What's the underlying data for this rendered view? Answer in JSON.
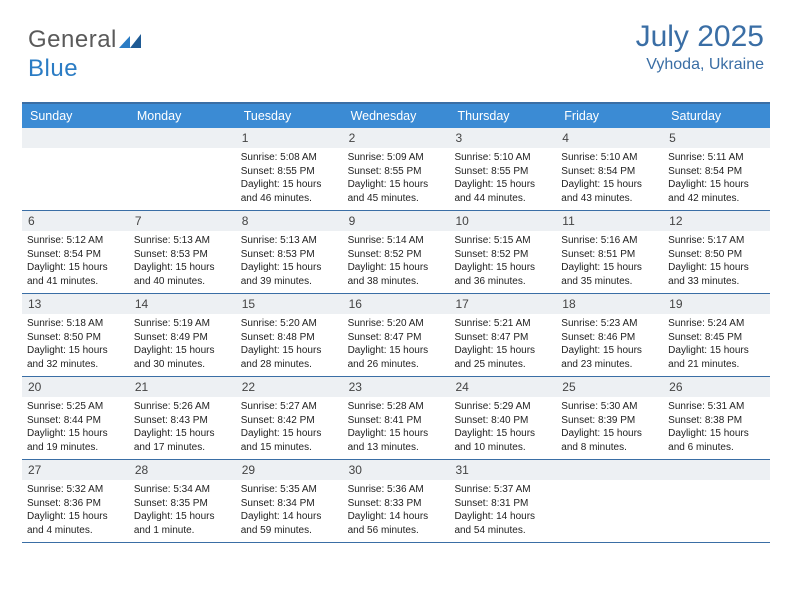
{
  "brand": {
    "name_part1": "General",
    "name_part2": "Blue"
  },
  "header": {
    "title": "July 2025",
    "location": "Vyhoda, Ukraine"
  },
  "colors": {
    "header_bar": "#3b8bd4",
    "accent": "#3a6ea5",
    "daynum_bg": "#edf0f3",
    "text": "#222222",
    "logo_gray": "#5a5a5a",
    "logo_blue": "#2b7cc4"
  },
  "weekdays": [
    "Sunday",
    "Monday",
    "Tuesday",
    "Wednesday",
    "Thursday",
    "Friday",
    "Saturday"
  ],
  "weeks": [
    [
      {
        "n": "",
        "sr": "",
        "ss": "",
        "dl": ""
      },
      {
        "n": "",
        "sr": "",
        "ss": "",
        "dl": ""
      },
      {
        "n": "1",
        "sr": "5:08 AM",
        "ss": "8:55 PM",
        "dl": "15 hours and 46 minutes."
      },
      {
        "n": "2",
        "sr": "5:09 AM",
        "ss": "8:55 PM",
        "dl": "15 hours and 45 minutes."
      },
      {
        "n": "3",
        "sr": "5:10 AM",
        "ss": "8:55 PM",
        "dl": "15 hours and 44 minutes."
      },
      {
        "n": "4",
        "sr": "5:10 AM",
        "ss": "8:54 PM",
        "dl": "15 hours and 43 minutes."
      },
      {
        "n": "5",
        "sr": "5:11 AM",
        "ss": "8:54 PM",
        "dl": "15 hours and 42 minutes."
      }
    ],
    [
      {
        "n": "6",
        "sr": "5:12 AM",
        "ss": "8:54 PM",
        "dl": "15 hours and 41 minutes."
      },
      {
        "n": "7",
        "sr": "5:13 AM",
        "ss": "8:53 PM",
        "dl": "15 hours and 40 minutes."
      },
      {
        "n": "8",
        "sr": "5:13 AM",
        "ss": "8:53 PM",
        "dl": "15 hours and 39 minutes."
      },
      {
        "n": "9",
        "sr": "5:14 AM",
        "ss": "8:52 PM",
        "dl": "15 hours and 38 minutes."
      },
      {
        "n": "10",
        "sr": "5:15 AM",
        "ss": "8:52 PM",
        "dl": "15 hours and 36 minutes."
      },
      {
        "n": "11",
        "sr": "5:16 AM",
        "ss": "8:51 PM",
        "dl": "15 hours and 35 minutes."
      },
      {
        "n": "12",
        "sr": "5:17 AM",
        "ss": "8:50 PM",
        "dl": "15 hours and 33 minutes."
      }
    ],
    [
      {
        "n": "13",
        "sr": "5:18 AM",
        "ss": "8:50 PM",
        "dl": "15 hours and 32 minutes."
      },
      {
        "n": "14",
        "sr": "5:19 AM",
        "ss": "8:49 PM",
        "dl": "15 hours and 30 minutes."
      },
      {
        "n": "15",
        "sr": "5:20 AM",
        "ss": "8:48 PM",
        "dl": "15 hours and 28 minutes."
      },
      {
        "n": "16",
        "sr": "5:20 AM",
        "ss": "8:47 PM",
        "dl": "15 hours and 26 minutes."
      },
      {
        "n": "17",
        "sr": "5:21 AM",
        "ss": "8:47 PM",
        "dl": "15 hours and 25 minutes."
      },
      {
        "n": "18",
        "sr": "5:23 AM",
        "ss": "8:46 PM",
        "dl": "15 hours and 23 minutes."
      },
      {
        "n": "19",
        "sr": "5:24 AM",
        "ss": "8:45 PM",
        "dl": "15 hours and 21 minutes."
      }
    ],
    [
      {
        "n": "20",
        "sr": "5:25 AM",
        "ss": "8:44 PM",
        "dl": "15 hours and 19 minutes."
      },
      {
        "n": "21",
        "sr": "5:26 AM",
        "ss": "8:43 PM",
        "dl": "15 hours and 17 minutes."
      },
      {
        "n": "22",
        "sr": "5:27 AM",
        "ss": "8:42 PM",
        "dl": "15 hours and 15 minutes."
      },
      {
        "n": "23",
        "sr": "5:28 AM",
        "ss": "8:41 PM",
        "dl": "15 hours and 13 minutes."
      },
      {
        "n": "24",
        "sr": "5:29 AM",
        "ss": "8:40 PM",
        "dl": "15 hours and 10 minutes."
      },
      {
        "n": "25",
        "sr": "5:30 AM",
        "ss": "8:39 PM",
        "dl": "15 hours and 8 minutes."
      },
      {
        "n": "26",
        "sr": "5:31 AM",
        "ss": "8:38 PM",
        "dl": "15 hours and 6 minutes."
      }
    ],
    [
      {
        "n": "27",
        "sr": "5:32 AM",
        "ss": "8:36 PM",
        "dl": "15 hours and 4 minutes."
      },
      {
        "n": "28",
        "sr": "5:34 AM",
        "ss": "8:35 PM",
        "dl": "15 hours and 1 minute."
      },
      {
        "n": "29",
        "sr": "5:35 AM",
        "ss": "8:34 PM",
        "dl": "14 hours and 59 minutes."
      },
      {
        "n": "30",
        "sr": "5:36 AM",
        "ss": "8:33 PM",
        "dl": "14 hours and 56 minutes."
      },
      {
        "n": "31",
        "sr": "5:37 AM",
        "ss": "8:31 PM",
        "dl": "14 hours and 54 minutes."
      },
      {
        "n": "",
        "sr": "",
        "ss": "",
        "dl": ""
      },
      {
        "n": "",
        "sr": "",
        "ss": "",
        "dl": ""
      }
    ]
  ],
  "labels": {
    "sunrise": "Sunrise:",
    "sunset": "Sunset:",
    "daylight": "Daylight:"
  }
}
